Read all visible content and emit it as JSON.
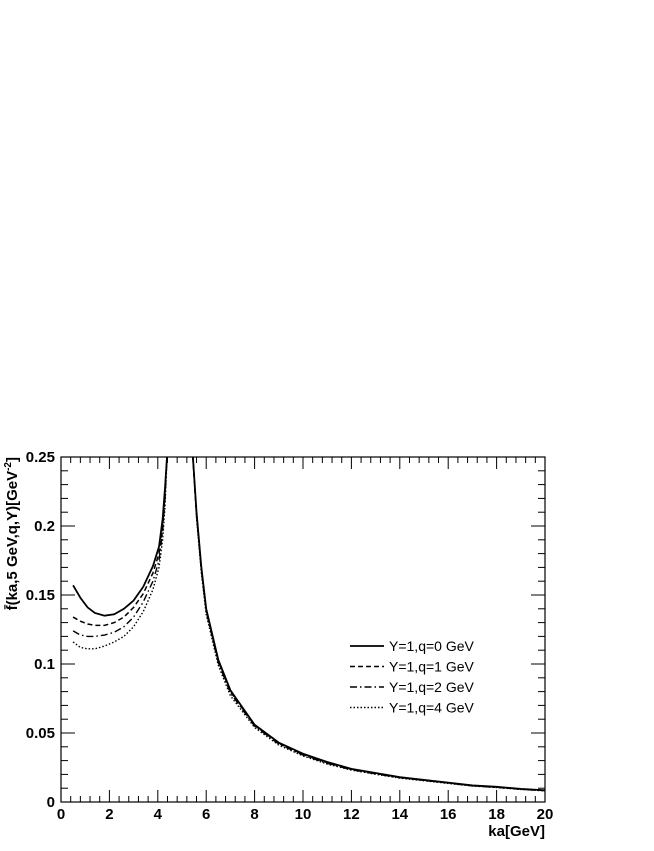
{
  "chart_data": {
    "type": "line",
    "title": "",
    "xlabel": "ka[GeV]",
    "ylabel": "f̄(ka,5 GeV,q,Y)[GeV",
    "ylabel_sup": "-2",
    "ylabel_close": "]",
    "xlim": [
      0,
      20
    ],
    "ylim": [
      0,
      0.25
    ],
    "x_ticks": [
      "0",
      "2",
      "4",
      "6",
      "8",
      "10",
      "12",
      "14",
      "16",
      "18",
      "20"
    ],
    "y_ticks": [
      "0",
      "0.05",
      "0.1",
      "0.15",
      "0.2",
      "0.25"
    ],
    "grid": false,
    "legend_position": "right",
    "series": [
      {
        "name": "Y=1,q=0 GeV",
        "dash": "solid",
        "points": [
          [
            0.5,
            0.157
          ],
          [
            0.8,
            0.148
          ],
          [
            1.1,
            0.141
          ],
          [
            1.4,
            0.137
          ],
          [
            1.8,
            0.135
          ],
          [
            2.2,
            0.136
          ],
          [
            2.6,
            0.14
          ],
          [
            3.0,
            0.146
          ],
          [
            3.4,
            0.156
          ],
          [
            3.8,
            0.171
          ],
          [
            4.05,
            0.185
          ],
          [
            4.2,
            0.205
          ],
          [
            4.3,
            0.228
          ],
          [
            4.38,
            0.25
          ]
        ],
        "points_right": [
          [
            5.45,
            0.25
          ],
          [
            5.6,
            0.21
          ],
          [
            5.8,
            0.17
          ],
          [
            6.0,
            0.14
          ],
          [
            6.5,
            0.103
          ],
          [
            7.0,
            0.081
          ],
          [
            8.0,
            0.056
          ],
          [
            9.0,
            0.043
          ],
          [
            10.0,
            0.035
          ],
          [
            11.0,
            0.029
          ],
          [
            12.0,
            0.024
          ],
          [
            13.0,
            0.021
          ],
          [
            14.0,
            0.018
          ],
          [
            15.0,
            0.016
          ],
          [
            16.0,
            0.014
          ],
          [
            17.0,
            0.012
          ],
          [
            18.0,
            0.011
          ],
          [
            19.0,
            0.0095
          ],
          [
            20.0,
            0.0085
          ]
        ]
      },
      {
        "name": "Y=1,q=1 GeV",
        "dash": "dashed",
        "points": [
          [
            0.5,
            0.134
          ],
          [
            0.8,
            0.131
          ],
          [
            1.1,
            0.129
          ],
          [
            1.4,
            0.128
          ],
          [
            1.8,
            0.128
          ],
          [
            2.2,
            0.13
          ],
          [
            2.6,
            0.134
          ],
          [
            3.0,
            0.141
          ],
          [
            3.4,
            0.151
          ],
          [
            3.8,
            0.166
          ],
          [
            4.05,
            0.18
          ],
          [
            4.2,
            0.2
          ],
          [
            4.3,
            0.224
          ],
          [
            4.38,
            0.25
          ]
        ],
        "points_right": [
          [
            5.45,
            0.25
          ],
          [
            5.6,
            0.209
          ],
          [
            5.8,
            0.169
          ],
          [
            6.0,
            0.139
          ],
          [
            6.5,
            0.102
          ],
          [
            7.0,
            0.08
          ],
          [
            8.0,
            0.0555
          ],
          [
            9.0,
            0.0425
          ],
          [
            10.0,
            0.0345
          ],
          [
            11.0,
            0.0285
          ],
          [
            12.0,
            0.0237
          ],
          [
            13.0,
            0.0207
          ],
          [
            14.0,
            0.0178
          ],
          [
            15.0,
            0.0158
          ],
          [
            16.0,
            0.0139
          ],
          [
            17.0,
            0.0119
          ],
          [
            18.0,
            0.0108
          ],
          [
            19.0,
            0.0093
          ],
          [
            20.0,
            0.0083
          ]
        ]
      },
      {
        "name": "Y=1,q=2 GeV",
        "dash": "dashdot",
        "points": [
          [
            0.5,
            0.124
          ],
          [
            0.8,
            0.121
          ],
          [
            1.1,
            0.12
          ],
          [
            1.4,
            0.12
          ],
          [
            1.8,
            0.121
          ],
          [
            2.2,
            0.123
          ],
          [
            2.6,
            0.127
          ],
          [
            3.0,
            0.134
          ],
          [
            3.4,
            0.145
          ],
          [
            3.8,
            0.16
          ],
          [
            4.05,
            0.175
          ],
          [
            4.2,
            0.196
          ],
          [
            4.3,
            0.22
          ],
          [
            4.38,
            0.25
          ]
        ],
        "points_right": [
          [
            5.45,
            0.25
          ],
          [
            5.6,
            0.208
          ],
          [
            5.8,
            0.168
          ],
          [
            6.0,
            0.138
          ],
          [
            6.5,
            0.101
          ],
          [
            7.0,
            0.079
          ],
          [
            8.0,
            0.055
          ],
          [
            9.0,
            0.042
          ],
          [
            10.0,
            0.034
          ],
          [
            11.0,
            0.028
          ],
          [
            12.0,
            0.0234
          ],
          [
            13.0,
            0.0204
          ],
          [
            14.0,
            0.0176
          ],
          [
            15.0,
            0.0156
          ],
          [
            16.0,
            0.0137
          ],
          [
            17.0,
            0.0117
          ],
          [
            18.0,
            0.0106
          ],
          [
            19.0,
            0.0092
          ],
          [
            20.0,
            0.0082
          ]
        ]
      },
      {
        "name": "Y=1,q=4 GeV",
        "dash": "dotted",
        "points": [
          [
            0.5,
            0.116
          ],
          [
            0.8,
            0.112
          ],
          [
            1.1,
            0.111
          ],
          [
            1.4,
            0.111
          ],
          [
            1.8,
            0.113
          ],
          [
            2.2,
            0.116
          ],
          [
            2.6,
            0.12
          ],
          [
            3.0,
            0.127
          ],
          [
            3.4,
            0.138
          ],
          [
            3.8,
            0.154
          ],
          [
            4.05,
            0.17
          ],
          [
            4.2,
            0.19
          ],
          [
            4.3,
            0.215
          ],
          [
            4.38,
            0.25
          ]
        ],
        "points_right": [
          [
            5.45,
            0.25
          ],
          [
            5.6,
            0.206
          ],
          [
            5.8,
            0.166
          ],
          [
            6.0,
            0.136
          ],
          [
            6.5,
            0.099
          ],
          [
            7.0,
            0.077
          ],
          [
            8.0,
            0.054
          ],
          [
            9.0,
            0.0412
          ],
          [
            10.0,
            0.0334
          ],
          [
            11.0,
            0.0275
          ],
          [
            12.0,
            0.0231
          ],
          [
            13.0,
            0.0201
          ],
          [
            14.0,
            0.0173
          ],
          [
            15.0,
            0.0154
          ],
          [
            16.0,
            0.0135
          ],
          [
            17.0,
            0.0116
          ],
          [
            18.0,
            0.0105
          ],
          [
            19.0,
            0.0091
          ],
          [
            20.0,
            0.0081
          ]
        ]
      }
    ]
  }
}
